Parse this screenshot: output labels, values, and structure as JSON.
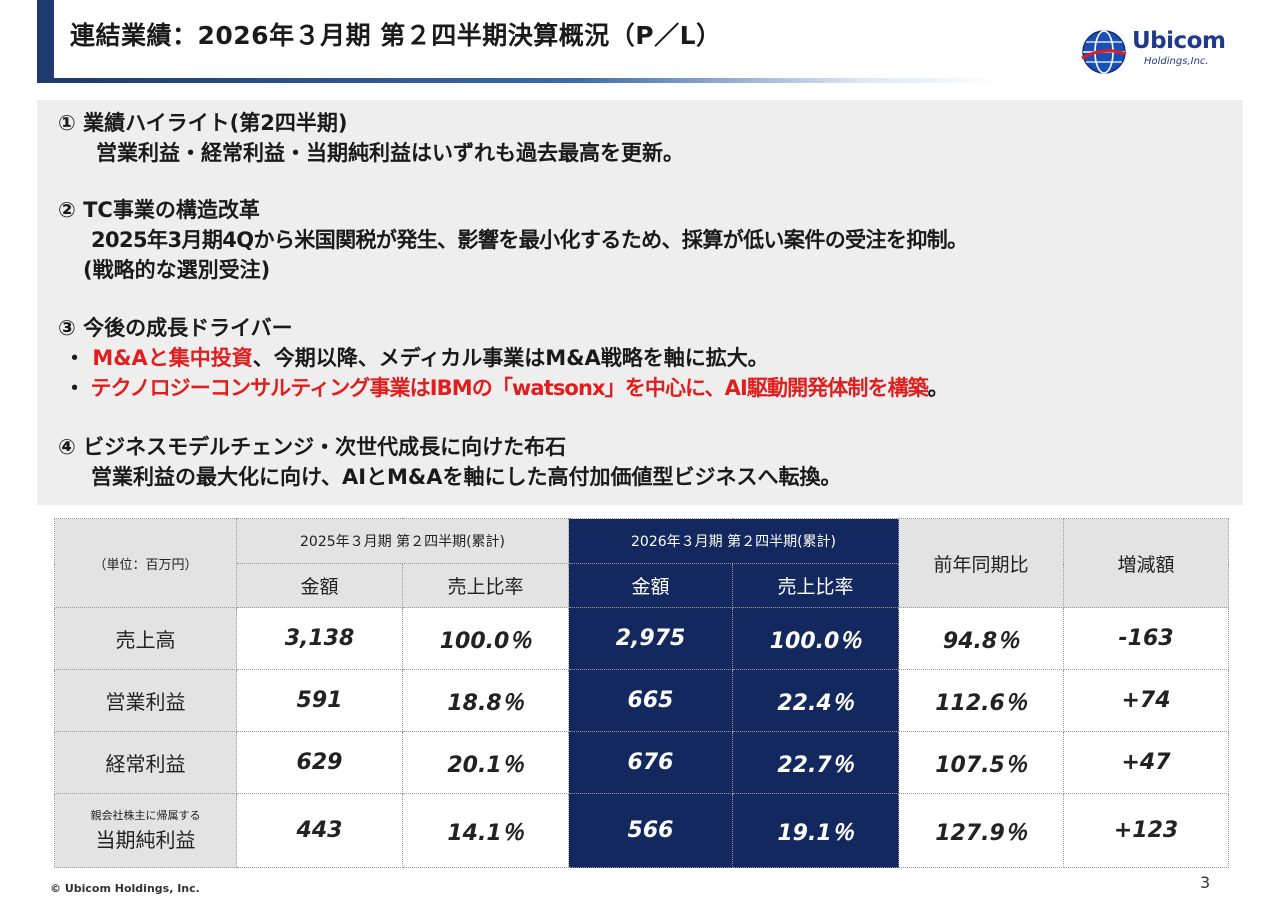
{
  "title": "連結業績：2026年３月期 第２四半期決算概況（P／L）",
  "logo": {
    "word": "Ubicom",
    "sub": "Holdings,Inc."
  },
  "highlights": {
    "s1": {
      "heading": "① 業績ハイライト(第2四半期)",
      "line1": "営業利益・経常利益・当期純利益はいずれも過去最高を更新。"
    },
    "s2": {
      "heading": "② TC事業の構造改革",
      "line1": "2025年3月期4Qから米国関税が発生、影響を最小化するため、採算が低い案件の受注を抑制。",
      "line2": "(戦略的な選別受注)"
    },
    "s3": {
      "heading": "③ 今後の成長ドライバー",
      "b1_bullet": "・",
      "b1_red": "M&Aと集中投資",
      "b1_rest": "、今期以降、メディカル事業はM&A戦略を軸に拡大。",
      "b2_bullet": "・",
      "b2_red": "テクノロジーコンサルティング事業はIBMの「watsonx」を中心に、AI駆動開発体制を構築",
      "b2_rest": "。"
    },
    "s4": {
      "heading": "④ ビジネスモデルチェンジ・次世代成長に向けた布石",
      "line1": "営業利益の最大化に向け、AIとM&Aを軸にした高付加価値型ビジネスへ転換。"
    }
  },
  "table": {
    "unit": "（単位：百万円）",
    "prev_period": "2025年３月期 第２四半期(累計)",
    "curr_period": "2026年３月期 第２四半期(累計)",
    "col_amount": "金額",
    "col_ratio": "売上比率",
    "col_yoy": "前年同期比",
    "col_diff": "増減額",
    "rows": [
      {
        "label": "売上高",
        "prev_amt": "3,138",
        "prev_ratio": "100.0％",
        "curr_amt": "2,975",
        "curr_ratio": "100.0％",
        "yoy": "94.8％",
        "diff": "-163"
      },
      {
        "label": "営業利益",
        "prev_amt": "591",
        "prev_ratio": "18.8％",
        "curr_amt": "665",
        "curr_ratio": "22.4％",
        "yoy": "112.6％",
        "diff": "+74"
      },
      {
        "label": "経常利益",
        "prev_amt": "629",
        "prev_ratio": "20.1％",
        "curr_amt": "676",
        "curr_ratio": "22.7％",
        "yoy": "107.5％",
        "diff": "+47"
      },
      {
        "label_small": "親会社株主に帰属する",
        "label": "当期純利益",
        "prev_amt": "443",
        "prev_ratio": "14.1％",
        "curr_amt": "566",
        "curr_ratio": "19.1％",
        "yoy": "127.9％",
        "diff": "+123"
      }
    ]
  },
  "footer": {
    "copyright": "© Ubicom Holdings, Inc.",
    "page": "3"
  },
  "colors": {
    "navy": "#13285e",
    "red": "#e01e1e",
    "gray": "#e3e3e3",
    "accent": "#1e3a6e"
  }
}
